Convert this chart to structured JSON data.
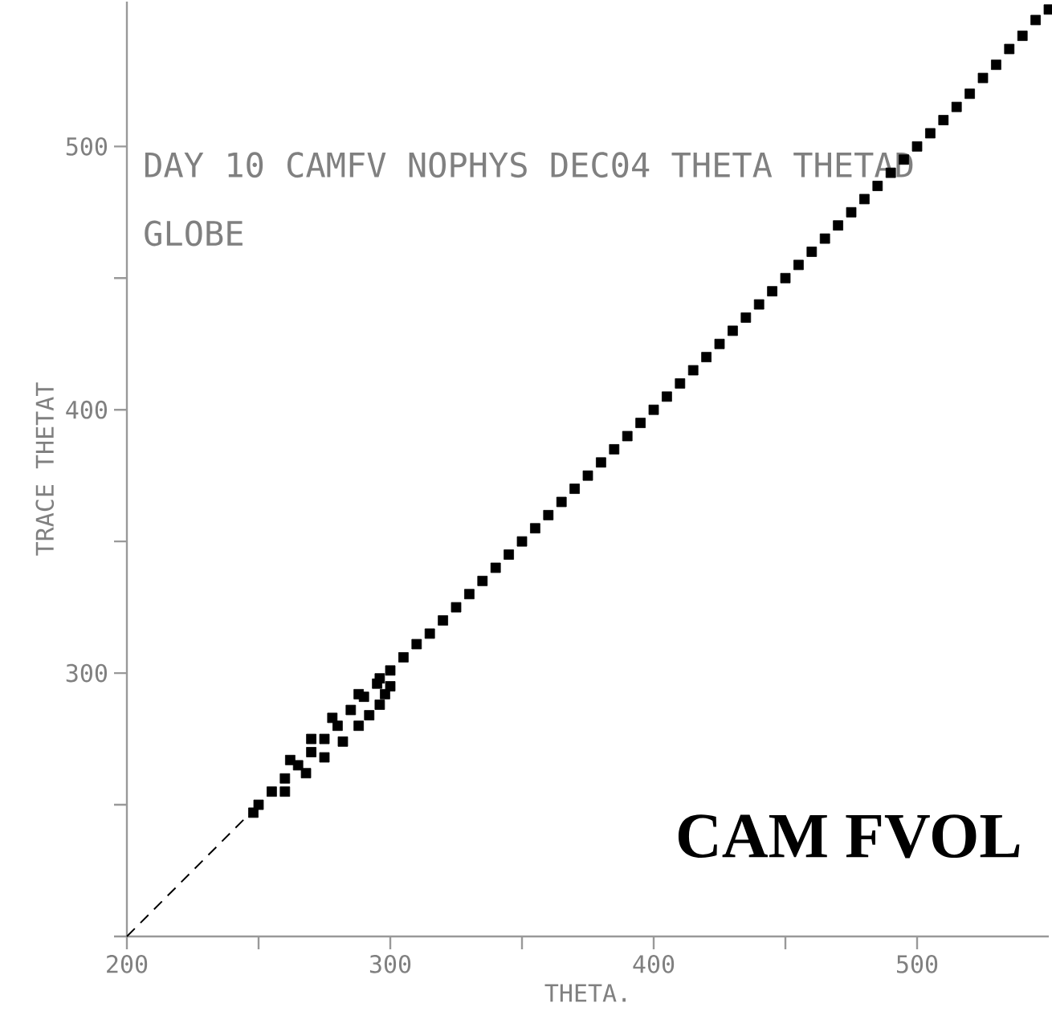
{
  "chart_data": {
    "type": "scatter",
    "title": "DAY 10 CAMFV NOPHYS DEC04 THETA THETAD",
    "subtitle": "GLOBE",
    "xlabel": "THETA.",
    "ylabel": "TRACE THETAT",
    "annotations": [
      "CAM FVOL"
    ],
    "xlim": [
      200,
      550
    ],
    "ylim": [
      200,
      555
    ],
    "xticks": [
      200,
      {
        "value": 250,
        "label": null
      },
      300,
      {
        "value": 350,
        "label": null
      },
      400,
      {
        "value": 450,
        "label": null
      },
      500
    ],
    "yticks": [
      {
        "value": 200,
        "label": null
      },
      {
        "value": 250,
        "label": null
      },
      300,
      {
        "value": 350,
        "label": null
      },
      400,
      {
        "value": 450,
        "label": null
      },
      500
    ],
    "grid": false,
    "series": [
      {
        "color": "#000000",
        "marker": "square",
        "x": [
          248,
          250,
          255,
          260,
          265,
          270,
          275,
          280,
          285,
          290,
          295,
          300,
          305,
          310,
          315,
          320,
          325,
          330,
          335,
          340,
          345,
          350,
          355,
          360,
          365,
          370,
          375,
          380,
          385,
          390,
          395,
          400,
          405,
          410,
          415,
          420,
          425,
          430,
          435,
          440,
          445,
          450,
          455,
          460,
          465,
          470,
          475,
          480,
          485,
          490,
          495,
          500,
          505,
          510,
          515,
          520,
          525,
          530,
          535,
          540,
          545,
          550,
          260,
          268,
          275,
          282,
          288,
          292,
          296,
          298,
          300,
          296,
          288,
          278,
          270,
          262
        ],
        "values": [
          247,
          250,
          255,
          260,
          265,
          270,
          275,
          280,
          286,
          291,
          296,
          301,
          306,
          311,
          315,
          320,
          325,
          330,
          335,
          340,
          345,
          350,
          355,
          360,
          365,
          370,
          375,
          380,
          385,
          390,
          395,
          400,
          405,
          410,
          415,
          420,
          425,
          430,
          435,
          440,
          445,
          450,
          455,
          460,
          465,
          470,
          475,
          480,
          485,
          490,
          495,
          500,
          505,
          510,
          515,
          520,
          526,
          531,
          537,
          542,
          548,
          552,
          255,
          262,
          268,
          274,
          280,
          284,
          288,
          292,
          295,
          298,
          292,
          283,
          275,
          267
        ]
      },
      {
        "type": "line",
        "color": "#000000",
        "marker": "none",
        "line_style": "dashed",
        "x": [
          200,
          250
        ],
        "values": [
          200,
          250
        ]
      }
    ]
  }
}
